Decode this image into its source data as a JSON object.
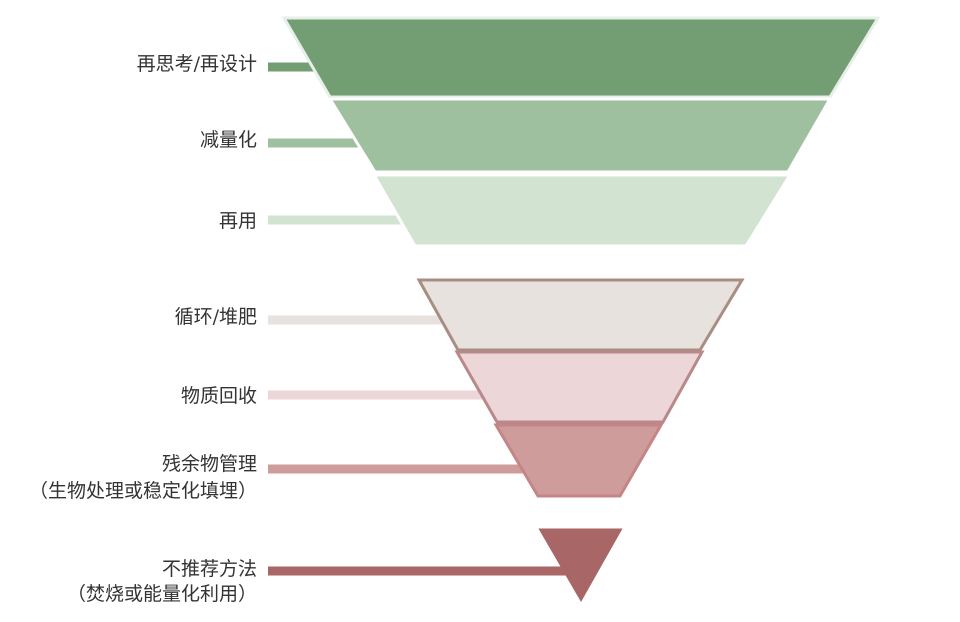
{
  "levels": [
    {
      "label": "再思考/再设计",
      "sub": "",
      "fill": "#739D73",
      "stroke": "#E8EFE8",
      "bar": "#739D73"
    },
    {
      "label": "减量化",
      "sub": "",
      "fill": "#9FC09F",
      "stroke": "#FFFFFF",
      "bar": "#9FC09F"
    },
    {
      "label": "再用",
      "sub": "",
      "fill": "#D2E3D2",
      "stroke": "#FFFFFF",
      "bar": "#D2E3D2"
    },
    {
      "label": "循环/堆肥",
      "sub": "",
      "fill": "#E8E2DF",
      "stroke": "#A88E82",
      "bar": "#E8E2DF"
    },
    {
      "label": "物质回收",
      "sub": "",
      "fill": "#EDD6D8",
      "stroke": "#B8888A",
      "bar": "#EDD6D8"
    },
    {
      "label": "残余物管理",
      "sub": "（生物处理或稳定化填埋）",
      "fill": "#CF9C9C",
      "stroke": "#C48585",
      "bar": "#CF9C9C"
    },
    {
      "label": "不推荐方法",
      "sub": "（焚烧或能量化利用）",
      "fill": "#A86666",
      "stroke": "#A86666",
      "bar": "#A86666"
    }
  ]
}
